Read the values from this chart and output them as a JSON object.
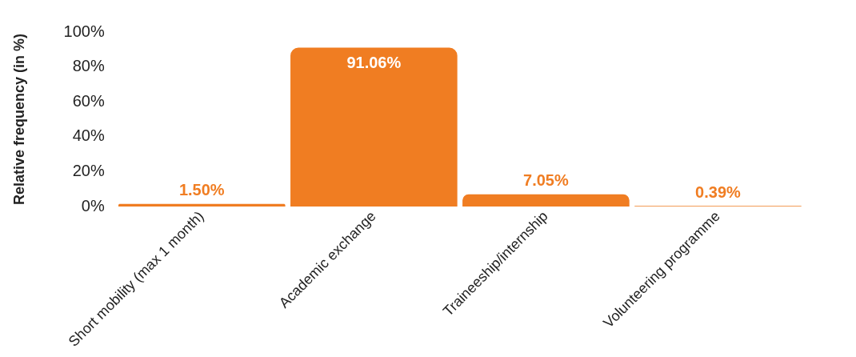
{
  "chart_data": {
    "type": "bar",
    "ylabel": "Relative frequency (in %)",
    "categories": [
      "Short mobility (max 1 month)",
      "Academic exchange",
      "Traineeship/internship",
      "Volunteering programme"
    ],
    "values": [
      1.5,
      91.06,
      7.05,
      0.39
    ],
    "color": "#f07d22",
    "value_labels": [
      "1.50%",
      "91.06%",
      "7.05%",
      "0.39%"
    ],
    "ylim": [
      0,
      100
    ],
    "yticks": [
      {
        "value": 0,
        "label": "0%"
      },
      {
        "value": 20,
        "label": "20%"
      },
      {
        "value": 40,
        "label": "40%"
      },
      {
        "value": 60,
        "label": "60%"
      },
      {
        "value": 80,
        "label": "80%"
      },
      {
        "value": 100,
        "label": "100%"
      }
    ],
    "grid": false,
    "legend": false
  }
}
